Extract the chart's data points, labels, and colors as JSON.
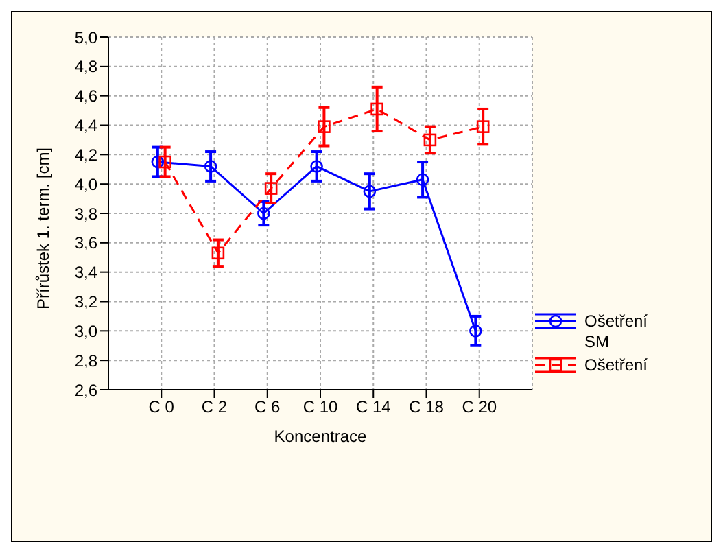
{
  "chart_data": {
    "type": "line",
    "xlabel": "Koncentrace",
    "ylabel": "Přírůstek 1. term. [cm]",
    "categories": [
      "C 0",
      "C 2",
      "C 6",
      "C 10",
      "C 14",
      "C 18",
      "C 20"
    ],
    "series": [
      {
        "name": "Ošetření SM",
        "color": "#0000ff",
        "marker": "circle",
        "line_style": "solid",
        "values": [
          4.15,
          4.12,
          3.8,
          4.12,
          3.95,
          4.03,
          3.0
        ],
        "errors": [
          0.1,
          0.1,
          0.08,
          0.1,
          0.12,
          0.12,
          0.1
        ]
      },
      {
        "name": "Ošetření",
        "color": "#ff0000",
        "marker": "square",
        "line_style": "dashed",
        "values": [
          4.15,
          3.53,
          3.97,
          4.39,
          4.51,
          4.3,
          4.39
        ],
        "errors": [
          0.1,
          0.09,
          0.1,
          0.13,
          0.15,
          0.09,
          0.12
        ]
      }
    ],
    "ylim": [
      2.6,
      5.0
    ],
    "yticks": [
      {
        "value": 2.6,
        "label": "2,6"
      },
      {
        "value": 2.8,
        "label": "2,8"
      },
      {
        "value": 3.0,
        "label": "3,0"
      },
      {
        "value": 3.2,
        "label": "3,2"
      },
      {
        "value": 3.4,
        "label": "3,4"
      },
      {
        "value": 3.6,
        "label": "3,6"
      },
      {
        "value": 3.8,
        "label": "3,8"
      },
      {
        "value": 4.0,
        "label": "4,0"
      },
      {
        "value": 4.2,
        "label": "4,2"
      },
      {
        "value": 4.4,
        "label": "4,4"
      },
      {
        "value": 4.6,
        "label": "4,6"
      },
      {
        "value": 4.8,
        "label": "4,8"
      },
      {
        "value": 5.0,
        "label": "5,0"
      }
    ],
    "grid": true,
    "legend": "right"
  }
}
